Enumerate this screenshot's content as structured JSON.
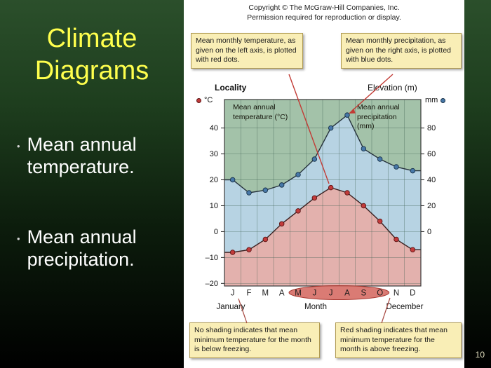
{
  "title_lines": [
    "Climate",
    "Diagrams"
  ],
  "bullets": [
    {
      "text": "Mean annual temperature."
    },
    {
      "text": "Mean annual precipitation."
    }
  ],
  "page_number": "10",
  "figure": {
    "copyright_lines": [
      "Copyright © The McGraw-Hill Companies, Inc.",
      "Permission required for reproduction or display."
    ],
    "callouts": {
      "top_left": "Mean monthly temperature, as given on the left axis, is plotted with red dots.",
      "top_right": "Mean monthly precipitation, as given on the right axis, is plotted with blue dots.",
      "bottom_left": "No shading indicates that mean minimum temperature for the month is below freezing.",
      "bottom_right": "Red shading indicates that mean minimum temperature for the month is above freezing."
    },
    "labels": {
      "locality": "Locality",
      "elevation": "Elevation (m)",
      "left_unit": "°C",
      "right_unit": "mm",
      "month_axis": "Month",
      "january": "January",
      "december": "December"
    }
  },
  "chart_data": {
    "type": "line",
    "title": "Climate diagram (climograph)",
    "categories": [
      "J",
      "F",
      "M",
      "A",
      "M",
      "J",
      "J",
      "A",
      "S",
      "O",
      "N",
      "D"
    ],
    "series": [
      {
        "name": "Mean monthly temperature (°C)",
        "axis": "left",
        "color": "#c23b3b",
        "values": [
          -8,
          -7,
          -3,
          3,
          8,
          13,
          17,
          15,
          10,
          4,
          -3,
          -7
        ]
      },
      {
        "name": "Mean monthly precipitation (mm)",
        "axis": "right",
        "color": "#4878a8",
        "values": [
          40,
          30,
          32,
          36,
          44,
          56,
          80,
          90,
          64,
          56,
          50,
          47
        ]
      }
    ],
    "left_axis": {
      "unit": "°C",
      "ticks": [
        40,
        30,
        20,
        10,
        0,
        -10,
        -20
      ],
      "range": [
        -21,
        51
      ],
      "label_lines": [
        "Mean annual",
        "temperature (°C)"
      ]
    },
    "right_axis": {
      "unit": "mm",
      "ticks": [
        80,
        60,
        40,
        20,
        0
      ],
      "range": [
        -42,
        102
      ],
      "label_lines": [
        "Mean annual",
        "precipitation",
        "(mm)"
      ]
    },
    "xlabel": "Month",
    "grid": true,
    "highlight_months_above_freezing": [
      4,
      9
    ],
    "area_colors": {
      "above_precip": "#a3c2a9",
      "between": "#b7d3e3",
      "below_temp": "#e3b1ad"
    }
  }
}
